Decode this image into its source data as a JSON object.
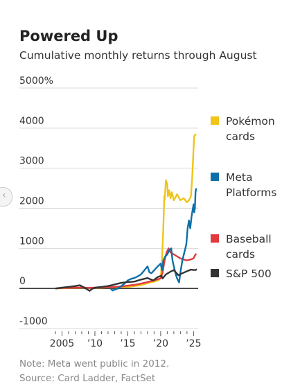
{
  "chart_data": {
    "type": "line",
    "title": "Powered Up",
    "subtitle": "Cumulative monthly returns through August",
    "y_tick_labels": [
      "5000%",
      "4000",
      "3000",
      "2000",
      "1000",
      "0",
      "-1000"
    ],
    "y_tick_values": [
      5000,
      4000,
      3000,
      2000,
      1000,
      0,
      -1000
    ],
    "x_tick_labels": [
      "2005",
      "’10",
      "’15",
      "’20",
      "’25"
    ],
    "x_tick_values": [
      2005,
      2010,
      2015,
      2020,
      2025
    ],
    "ylim": [
      -1000,
      5000
    ],
    "xlim": [
      2003.5,
      2025.7
    ],
    "grid": "horizontal",
    "legend_position": "right",
    "series": [
      {
        "name": "Pokémon cards",
        "color": "#f0c419",
        "points": [
          [
            2004,
            0
          ],
          [
            2005,
            5
          ],
          [
            2006,
            10
          ],
          [
            2007,
            15
          ],
          [
            2008,
            20
          ],
          [
            2009,
            10
          ],
          [
            2010,
            15
          ],
          [
            2011,
            20
          ],
          [
            2012,
            25
          ],
          [
            2013,
            30
          ],
          [
            2014,
            35
          ],
          [
            2015,
            40
          ],
          [
            2016,
            60
          ],
          [
            2017,
            80
          ],
          [
            2018,
            130
          ],
          [
            2019,
            170
          ],
          [
            2019.6,
            200
          ],
          [
            2020.0,
            260
          ],
          [
            2020.2,
            700
          ],
          [
            2020.4,
            1500
          ],
          [
            2020.55,
            2300
          ],
          [
            2020.6,
            2200
          ],
          [
            2020.8,
            2700
          ],
          [
            2021.0,
            2600
          ],
          [
            2021.1,
            2300
          ],
          [
            2021.3,
            2450
          ],
          [
            2021.5,
            2250
          ],
          [
            2021.7,
            2400
          ],
          [
            2022.0,
            2200
          ],
          [
            2022.5,
            2350
          ],
          [
            2023.0,
            2200
          ],
          [
            2023.5,
            2250
          ],
          [
            2024.0,
            2150
          ],
          [
            2024.3,
            2200
          ],
          [
            2024.6,
            2300
          ],
          [
            2024.8,
            2800
          ],
          [
            2025.0,
            3500
          ],
          [
            2025.1,
            3800
          ],
          [
            2025.25,
            3830
          ],
          [
            2025.4,
            3850
          ]
        ]
      },
      {
        "name": "Meta Platforms",
        "color": "#0d6fa8",
        "points": [
          [
            2012.4,
            0
          ],
          [
            2012.7,
            -50
          ],
          [
            2013.0,
            -30
          ],
          [
            2013.5,
            0
          ],
          [
            2014.0,
            60
          ],
          [
            2014.5,
            120
          ],
          [
            2015.0,
            200
          ],
          [
            2015.5,
            240
          ],
          [
            2016.0,
            260
          ],
          [
            2016.5,
            300
          ],
          [
            2017.0,
            350
          ],
          [
            2017.5,
            450
          ],
          [
            2018.0,
            550
          ],
          [
            2018.3,
            400
          ],
          [
            2018.6,
            380
          ],
          [
            2019.0,
            450
          ],
          [
            2019.5,
            540
          ],
          [
            2020.0,
            620
          ],
          [
            2020.2,
            450
          ],
          [
            2020.4,
            700
          ],
          [
            2020.7,
            800
          ],
          [
            2021.0,
            850
          ],
          [
            2021.3,
            950
          ],
          [
            2021.6,
            1000
          ],
          [
            2021.8,
            700
          ],
          [
            2022.0,
            550
          ],
          [
            2022.3,
            350
          ],
          [
            2022.5,
            250
          ],
          [
            2022.8,
            150
          ],
          [
            2023.0,
            400
          ],
          [
            2023.3,
            700
          ],
          [
            2023.6,
            900
          ],
          [
            2023.9,
            1100
          ],
          [
            2024.1,
            1500
          ],
          [
            2024.3,
            1700
          ],
          [
            2024.5,
            1500
          ],
          [
            2024.7,
            1800
          ],
          [
            2024.9,
            2000
          ],
          [
            2025.0,
            2100
          ],
          [
            2025.1,
            1900
          ],
          [
            2025.2,
            2000
          ],
          [
            2025.3,
            2400
          ],
          [
            2025.4,
            2500
          ]
        ]
      },
      {
        "name": "Baseball cards",
        "color": "#e03a3e",
        "points": [
          [
            2004,
            0
          ],
          [
            2005,
            10
          ],
          [
            2006,
            15
          ],
          [
            2007,
            20
          ],
          [
            2008,
            25
          ],
          [
            2009,
            15
          ],
          [
            2010,
            20
          ],
          [
            2011,
            25
          ],
          [
            2012,
            30
          ],
          [
            2013,
            40
          ],
          [
            2014,
            50
          ],
          [
            2015,
            70
          ],
          [
            2016,
            90
          ],
          [
            2017,
            120
          ],
          [
            2018,
            160
          ],
          [
            2019,
            200
          ],
          [
            2019.5,
            230
          ],
          [
            2020.0,
            250
          ],
          [
            2020.3,
            400
          ],
          [
            2020.6,
            700
          ],
          [
            2020.9,
            900
          ],
          [
            2021.2,
            1000
          ],
          [
            2021.5,
            900
          ],
          [
            2022.0,
            850
          ],
          [
            2022.5,
            800
          ],
          [
            2023.0,
            750
          ],
          [
            2023.5,
            720
          ],
          [
            2024.0,
            700
          ],
          [
            2024.5,
            720
          ],
          [
            2025.0,
            750
          ],
          [
            2025.2,
            820
          ],
          [
            2025.4,
            870
          ]
        ]
      },
      {
        "name": "S&P 500",
        "color": "#333333",
        "points": [
          [
            2004,
            0
          ],
          [
            2005,
            20
          ],
          [
            2006,
            40
          ],
          [
            2007,
            60
          ],
          [
            2007.7,
            80
          ],
          [
            2008.3,
            30
          ],
          [
            2009.2,
            -60
          ],
          [
            2009.6,
            -10
          ],
          [
            2010,
            20
          ],
          [
            2011,
            40
          ],
          [
            2012,
            60
          ],
          [
            2013,
            100
          ],
          [
            2014,
            140
          ],
          [
            2015,
            160
          ],
          [
            2016,
            170
          ],
          [
            2017,
            220
          ],
          [
            2018,
            260
          ],
          [
            2018.9,
            200
          ],
          [
            2019.5,
            280
          ],
          [
            2020.1,
            320
          ],
          [
            2020.3,
            250
          ],
          [
            2020.8,
            350
          ],
          [
            2021.5,
            420
          ],
          [
            2022.0,
            460
          ],
          [
            2022.7,
            330
          ],
          [
            2023.3,
            380
          ],
          [
            2024.0,
            430
          ],
          [
            2024.6,
            470
          ],
          [
            2025.0,
            460
          ],
          [
            2025.3,
            460
          ],
          [
            2025.5,
            480
          ]
        ]
      }
    ]
  },
  "legend": [
    {
      "label": "Pokémon cards",
      "color": "#f0c419"
    },
    {
      "label": "Meta Platforms",
      "color": "#0d6fa8"
    },
    {
      "label": "Baseball cards",
      "color": "#e03a3e"
    },
    {
      "label": "S&P 500",
      "color": "#333333"
    }
  ],
  "notes": {
    "note": "Note: Meta went public in 2012.",
    "source": "Source: Card Ladder, FactSet"
  },
  "nav": {
    "prev_icon": "chevron-left-icon",
    "prev_glyph": "‹"
  }
}
